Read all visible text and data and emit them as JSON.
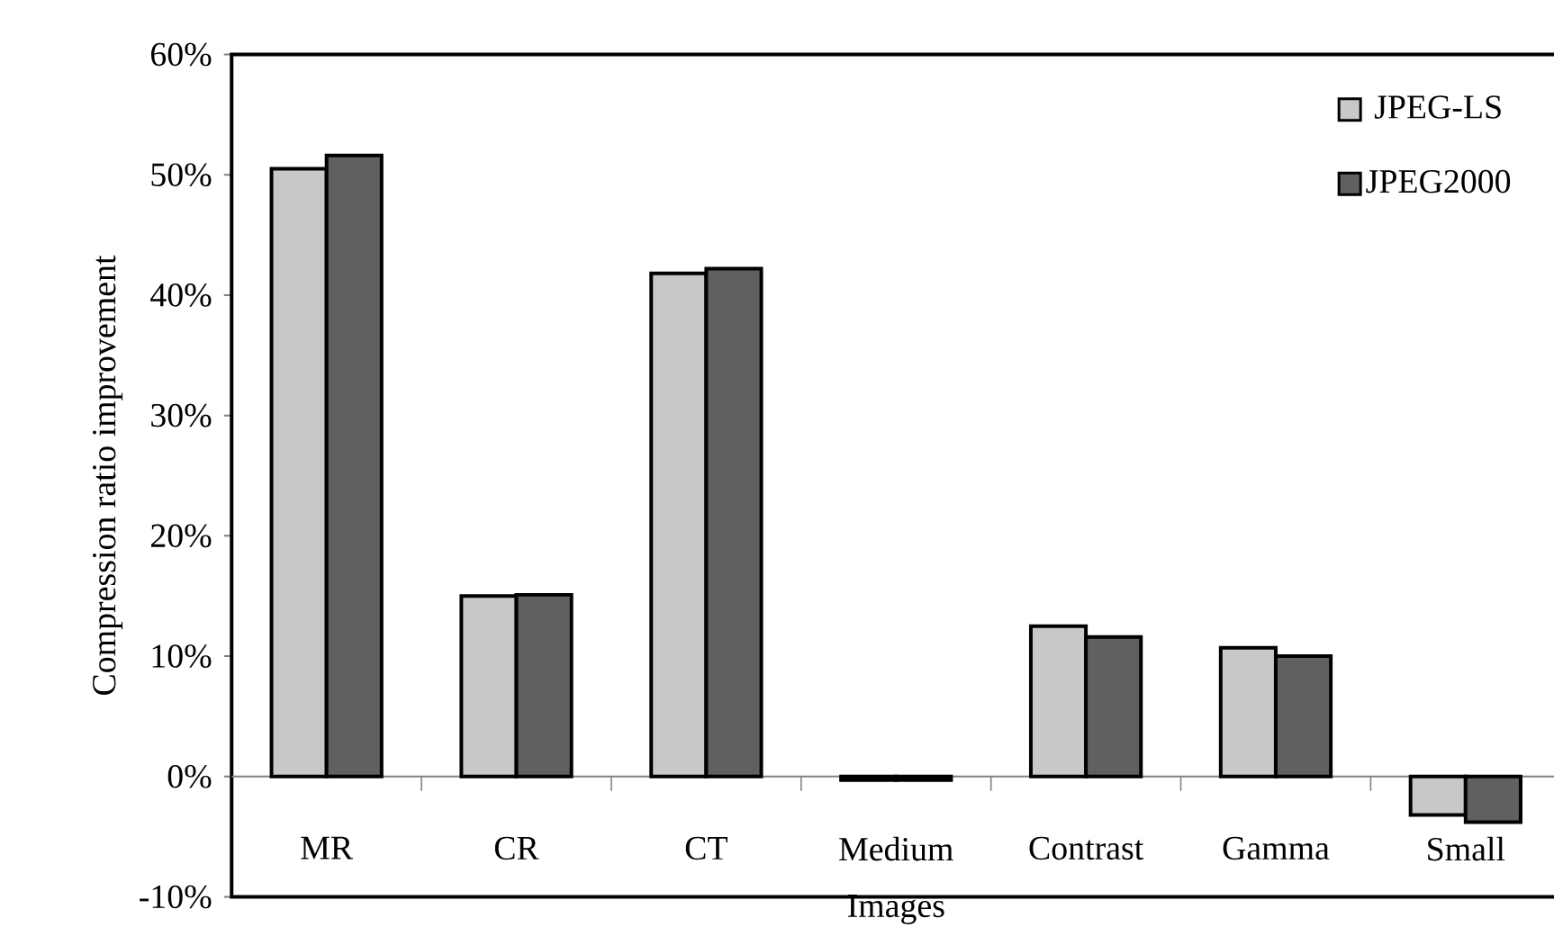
{
  "chart_data": {
    "type": "bar",
    "xlabel": "Images",
    "ylabel": "Compression ratio improvement",
    "categories": [
      "MR",
      "CR",
      "CT",
      "Medium",
      "Contrast",
      "Gamma",
      "Small"
    ],
    "series": [
      {
        "name": "JPEG-LS",
        "color": "#c8c8c8",
        "values": [
          50.5,
          15.0,
          41.8,
          -0.3,
          12.5,
          10.7,
          -3.2
        ]
      },
      {
        "name": "JPEG2000",
        "color": "#606060",
        "values": [
          51.6,
          15.1,
          42.2,
          -0.3,
          11.6,
          10.0,
          -3.8
        ]
      }
    ],
    "ylim": [
      -10,
      60
    ],
    "yticks": [
      {
        "value": -10,
        "label": "-10%"
      },
      {
        "value": 0,
        "label": "0%"
      },
      {
        "value": 10,
        "label": "10%"
      },
      {
        "value": 20,
        "label": "20%"
      },
      {
        "value": 30,
        "label": "30%"
      },
      {
        "value": 40,
        "label": "40%"
      },
      {
        "value": 50,
        "label": "50%"
      },
      {
        "value": 60,
        "label": "60%"
      }
    ],
    "ref_lines": [
      {
        "axis": "y",
        "value": 0,
        "color": "#808080"
      }
    ],
    "legend": "top right"
  }
}
